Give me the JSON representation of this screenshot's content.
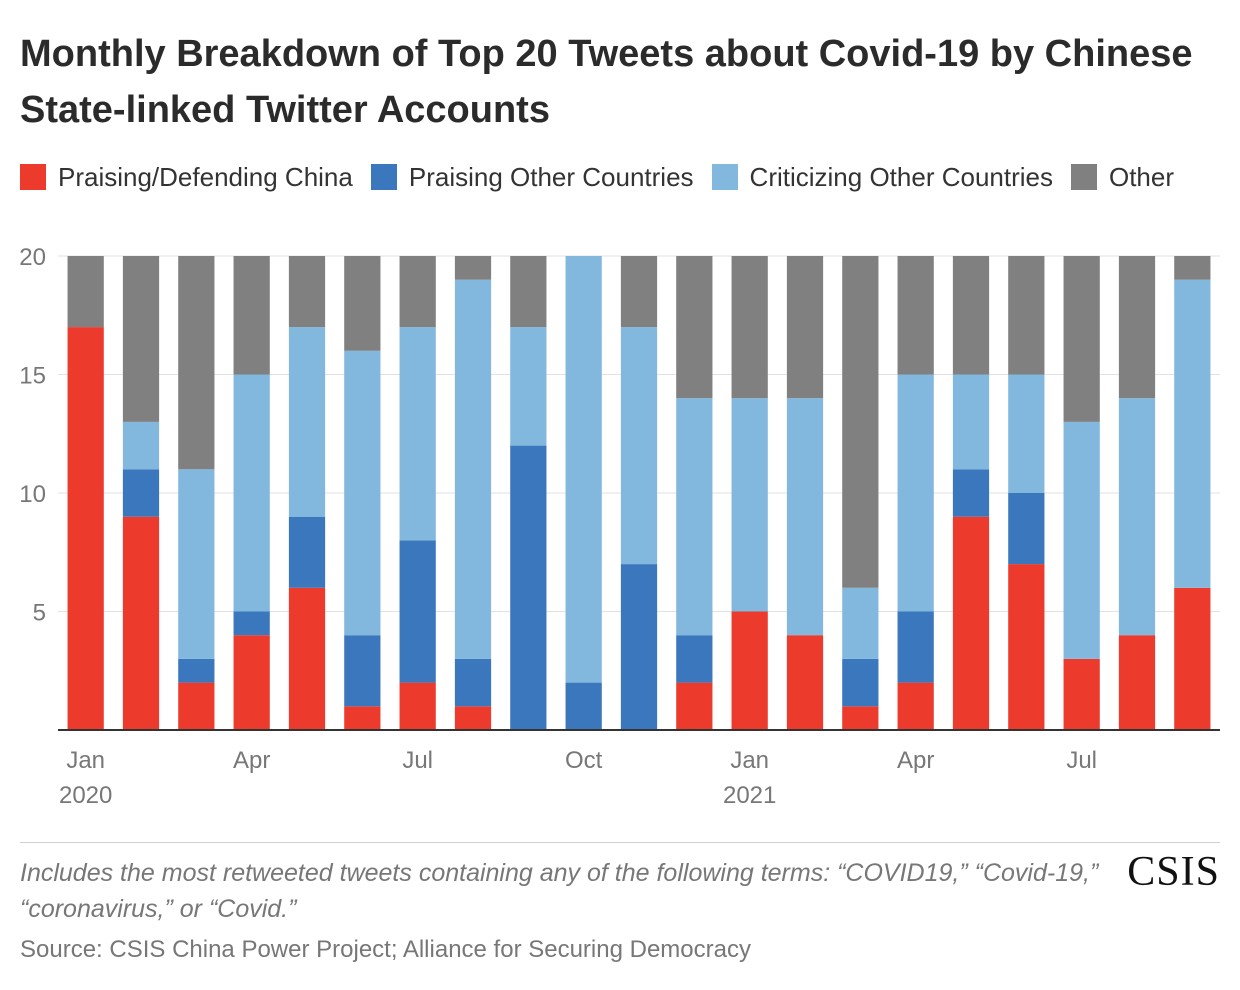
{
  "title": "Monthly Breakdown of Top 20 Tweets about Covid-19 by Chinese State-linked Twitter Accounts",
  "note": "Includes the most retweeted tweets containing any of the following terms: “COVID19,” “Covid-19,” “coronavirus,” or “Covid.”",
  "source": "Source: CSIS China Power Project; Alliance for Securing Democracy",
  "logo_text": "CSIS",
  "colors": {
    "praising_china": "#ec3a2d",
    "praising_other": "#3b77bd",
    "criticizing_other": "#82b8dd",
    "other": "#808080",
    "grid": "#e2e2e2",
    "axis": "#333333"
  },
  "chart_data": {
    "type": "bar",
    "stacked": true,
    "title": "Monthly Breakdown of Top 20 Tweets about Covid-19 by Chinese State-linked Twitter Accounts",
    "xlabel": "",
    "ylabel": "",
    "ylim": [
      0,
      20
    ],
    "yticks": [
      5,
      10,
      15,
      20
    ],
    "grid": true,
    "legend_position": "top-left",
    "categories": [
      "Jan 2020",
      "Feb 2020",
      "Mar 2020",
      "Apr 2020",
      "May 2020",
      "Jun 2020",
      "Jul 2020",
      "Aug 2020",
      "Sep 2020",
      "Oct 2020",
      "Nov 2020",
      "Dec 2020",
      "Jan 2021",
      "Feb 2021",
      "Mar 2021",
      "Apr 2021",
      "May 2021",
      "Jun 2021",
      "Jul 2021",
      "Aug 2021",
      "Sep 2021"
    ],
    "x_tick_labels": [
      {
        "index": 0,
        "lines": [
          "Jan",
          "2020"
        ]
      },
      {
        "index": 3,
        "lines": [
          "Apr"
        ]
      },
      {
        "index": 6,
        "lines": [
          "Jul"
        ]
      },
      {
        "index": 9,
        "lines": [
          "Oct"
        ]
      },
      {
        "index": 12,
        "lines": [
          "Jan",
          "2021"
        ]
      },
      {
        "index": 15,
        "lines": [
          "Apr"
        ]
      },
      {
        "index": 18,
        "lines": [
          "Jul"
        ]
      }
    ],
    "series": [
      {
        "name": "Praising/Defending China",
        "color": "#ec3a2d",
        "values": [
          17,
          9,
          2,
          4,
          6,
          1,
          2,
          1,
          0,
          0,
          0,
          2,
          5,
          4,
          1,
          2,
          9,
          7,
          3,
          4,
          6
        ]
      },
      {
        "name": "Praising Other Countries",
        "color": "#3b77bd",
        "values": [
          0,
          2,
          1,
          1,
          3,
          3,
          6,
          2,
          12,
          2,
          7,
          2,
          0,
          0,
          2,
          3,
          2,
          3,
          0,
          0,
          0
        ]
      },
      {
        "name": "Criticizing Other Countries",
        "color": "#82b8dd",
        "values": [
          0,
          2,
          8,
          10,
          8,
          12,
          9,
          16,
          5,
          18,
          10,
          10,
          9,
          10,
          3,
          10,
          4,
          5,
          10,
          10,
          13
        ]
      },
      {
        "name": "Other",
        "color": "#808080",
        "values": [
          3,
          7,
          9,
          5,
          3,
          4,
          3,
          1,
          3,
          0,
          3,
          6,
          6,
          6,
          14,
          5,
          5,
          5,
          7,
          6,
          1
        ]
      }
    ]
  }
}
